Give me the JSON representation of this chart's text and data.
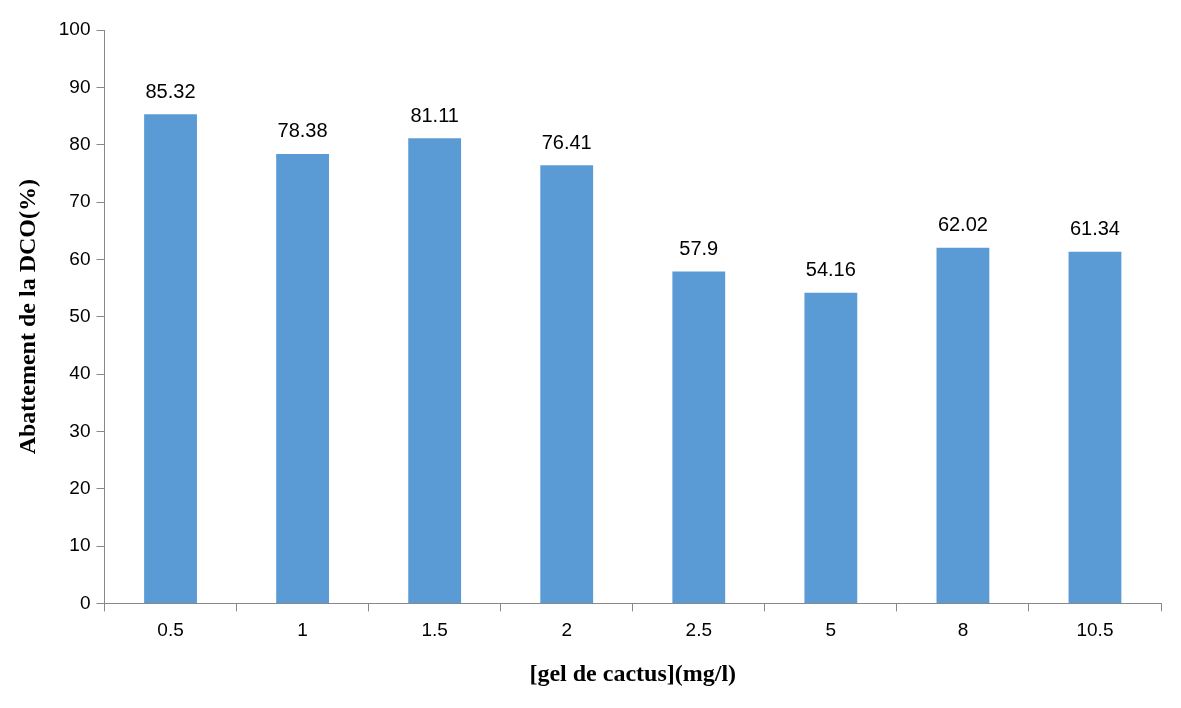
{
  "chart_data": {
    "type": "bar",
    "xlabel": "[gel de cactus](mg/l)",
    "ylabel": "Abattement de la DCO(%)",
    "categories": [
      "0.5",
      "1",
      "1.5",
      "2",
      "2.5",
      "5",
      "8",
      "10.5"
    ],
    "values": [
      85.32,
      78.38,
      81.11,
      76.41,
      57.9,
      54.16,
      62.02,
      61.34
    ],
    "color": "#5b9bd5",
    "ylim": [
      0,
      100
    ],
    "yticks": [
      0,
      10,
      20,
      30,
      40,
      50,
      60,
      70,
      80,
      90,
      100
    ],
    "grid": false,
    "legend": false,
    "data_labels": true
  }
}
